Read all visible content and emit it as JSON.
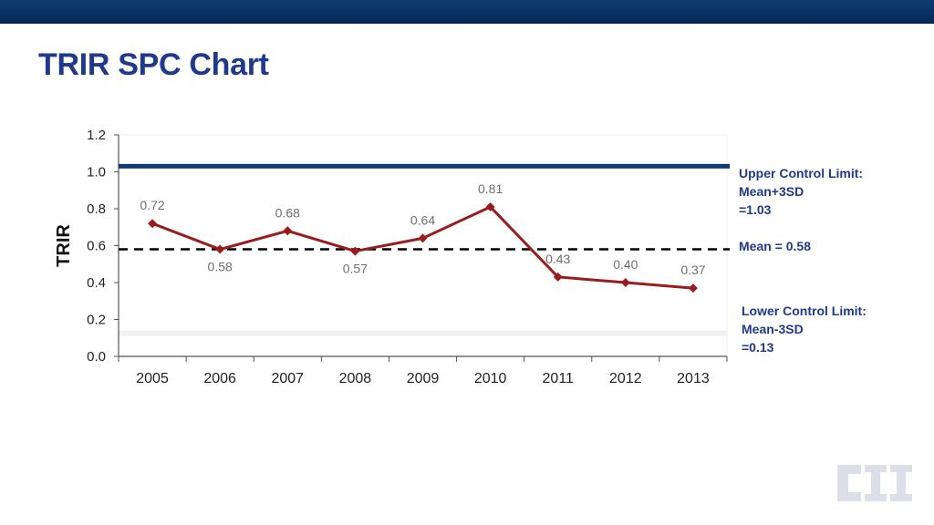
{
  "header": {
    "title": "TRIR SPC Chart"
  },
  "chart_data": {
    "type": "line",
    "title": "TRIR SPC Chart",
    "xlabel": "",
    "ylabel": "TRIR",
    "categories": [
      "2005",
      "2006",
      "2007",
      "2008",
      "2009",
      "2010",
      "2011",
      "2012",
      "2013"
    ],
    "series": [
      {
        "values": [
          0.72,
          0.58,
          0.68,
          0.57,
          0.64,
          0.81,
          0.43,
          0.4,
          0.37
        ],
        "labels": [
          "0.72",
          "0.58",
          "0.68",
          "0.57",
          "0.64",
          "0.81",
          "0.43",
          "0.40",
          "0.37"
        ],
        "color": "#9b1c1c"
      }
    ],
    "ylim": [
      0,
      1.2
    ],
    "yticks": [
      "0.0",
      "0.2",
      "0.4",
      "0.6",
      "0.8",
      "1.0",
      "1.2"
    ],
    "reference_lines": {
      "ucl": {
        "value": 1.03,
        "color": "#0d3b72"
      },
      "mean": {
        "value": 0.58,
        "color": "#000000"
      },
      "lcl": {
        "value": 0.13
      }
    },
    "grid": false,
    "legend": "none"
  },
  "notes": {
    "ucl": [
      "Upper Control Limit:",
      "Mean+3SD",
      "=1.03"
    ],
    "mean": "Mean = 0.58",
    "lcl": [
      "Lower Control Limit:",
      "Mean-3SD",
      "=0.13"
    ]
  },
  "logo": {
    "text": "CII",
    "color": "#dcdfe8"
  }
}
